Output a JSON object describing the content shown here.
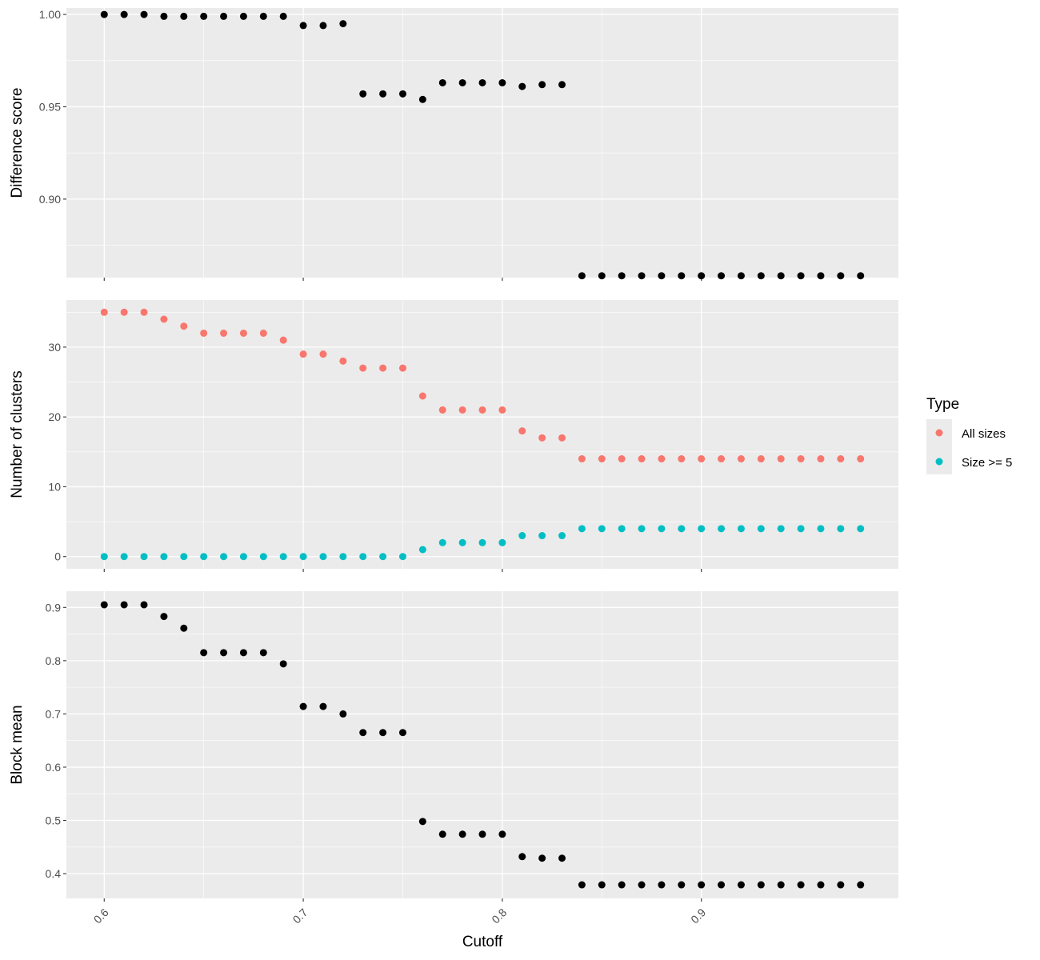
{
  "chart_data": [
    {
      "type": "scatter",
      "ylabel": "Difference score",
      "ylim": [
        0.8575,
        1.0035
      ],
      "yticks": [
        "0.90",
        "0.95",
        "1.00"
      ],
      "grid": true,
      "series": [
        {
          "color": "#000000",
          "x": [
            0.6,
            0.61,
            0.62,
            0.63,
            0.64,
            0.65,
            0.66,
            0.67,
            0.68,
            0.69,
            0.7,
            0.71,
            0.72,
            0.73,
            0.74,
            0.75,
            0.76,
            0.77,
            0.78,
            0.79,
            0.8,
            0.81,
            0.82,
            0.83,
            0.84,
            0.85,
            0.86,
            0.87,
            0.88,
            0.89,
            0.9,
            0.91,
            0.92,
            0.93,
            0.94,
            0.95,
            0.96,
            0.97,
            0.98
          ],
          "y": [
            1.0,
            1.0,
            1.0,
            0.999,
            0.999,
            0.999,
            0.999,
            0.999,
            0.999,
            0.999,
            0.994,
            0.994,
            0.995,
            0.957,
            0.957,
            0.957,
            0.954,
            0.963,
            0.963,
            0.963,
            0.963,
            0.961,
            0.962,
            0.962,
            0.8585,
            0.8585,
            0.8585,
            0.8585,
            0.8585,
            0.8585,
            0.8585,
            0.8585,
            0.8585,
            0.8585,
            0.8585,
            0.8585,
            0.8585,
            0.8585,
            0.8585
          ]
        }
      ]
    },
    {
      "type": "scatter",
      "ylabel": "Number of clusters",
      "ylim": [
        -1.75,
        36.75
      ],
      "yticks": [
        "0",
        "10",
        "20",
        "30"
      ],
      "grid": true,
      "legend": {
        "title": "Type",
        "placement": "right"
      },
      "series": [
        {
          "name": "All sizes",
          "color": "#F8766D",
          "x": [
            0.6,
            0.61,
            0.62,
            0.63,
            0.64,
            0.65,
            0.66,
            0.67,
            0.68,
            0.69,
            0.7,
            0.71,
            0.72,
            0.73,
            0.74,
            0.75,
            0.76,
            0.77,
            0.78,
            0.79,
            0.8,
            0.81,
            0.82,
            0.83,
            0.84,
            0.85,
            0.86,
            0.87,
            0.88,
            0.89,
            0.9,
            0.91,
            0.92,
            0.93,
            0.94,
            0.95,
            0.96,
            0.97,
            0.98
          ],
          "y": [
            35,
            35,
            35,
            34,
            33,
            32,
            32,
            32,
            32,
            31,
            29,
            29,
            28,
            27,
            27,
            27,
            23,
            21,
            21,
            21,
            21,
            18,
            17,
            17,
            14,
            14,
            14,
            14,
            14,
            14,
            14,
            14,
            14,
            14,
            14,
            14,
            14,
            14,
            14
          ]
        },
        {
          "name": "Size >= 5",
          "color": "#00BFC4",
          "x": [
            0.6,
            0.61,
            0.62,
            0.63,
            0.64,
            0.65,
            0.66,
            0.67,
            0.68,
            0.69,
            0.7,
            0.71,
            0.72,
            0.73,
            0.74,
            0.75,
            0.76,
            0.77,
            0.78,
            0.79,
            0.8,
            0.81,
            0.82,
            0.83,
            0.84,
            0.85,
            0.86,
            0.87,
            0.88,
            0.89,
            0.9,
            0.91,
            0.92,
            0.93,
            0.94,
            0.95,
            0.96,
            0.97,
            0.98
          ],
          "y": [
            0,
            0,
            0,
            0,
            0,
            0,
            0,
            0,
            0,
            0,
            0,
            0,
            0,
            0,
            0,
            0,
            1,
            2,
            2,
            2,
            2,
            3,
            3,
            3,
            4,
            4,
            4,
            4,
            4,
            4,
            4,
            4,
            4,
            4,
            4,
            4,
            4,
            4,
            4
          ]
        }
      ]
    },
    {
      "type": "scatter",
      "ylabel": "Block mean",
      "ylim": [
        0.3535,
        0.9305
      ],
      "yticks": [
        "0.4",
        "0.5",
        "0.6",
        "0.7",
        "0.8",
        "0.9"
      ],
      "grid": true,
      "series": [
        {
          "color": "#000000",
          "x": [
            0.6,
            0.61,
            0.62,
            0.63,
            0.64,
            0.65,
            0.66,
            0.67,
            0.68,
            0.69,
            0.7,
            0.71,
            0.72,
            0.73,
            0.74,
            0.75,
            0.76,
            0.77,
            0.78,
            0.79,
            0.8,
            0.81,
            0.82,
            0.83,
            0.84,
            0.85,
            0.86,
            0.87,
            0.88,
            0.89,
            0.9,
            0.91,
            0.92,
            0.93,
            0.94,
            0.95,
            0.96,
            0.97,
            0.98
          ],
          "y": [
            0.905,
            0.905,
            0.905,
            0.883,
            0.861,
            0.815,
            0.815,
            0.815,
            0.815,
            0.794,
            0.714,
            0.714,
            0.7,
            0.665,
            0.665,
            0.665,
            0.498,
            0.474,
            0.474,
            0.474,
            0.474,
            0.432,
            0.429,
            0.429,
            0.379,
            0.379,
            0.379,
            0.379,
            0.379,
            0.379,
            0.379,
            0.379,
            0.379,
            0.379,
            0.379,
            0.379,
            0.379,
            0.379,
            0.379
          ]
        }
      ]
    }
  ],
  "shared_x": {
    "xlabel": "Cutoff",
    "xlim": [
      0.581,
      0.999
    ],
    "xticks": [
      "0.6",
      "0.7",
      "0.8",
      "0.9"
    ]
  }
}
